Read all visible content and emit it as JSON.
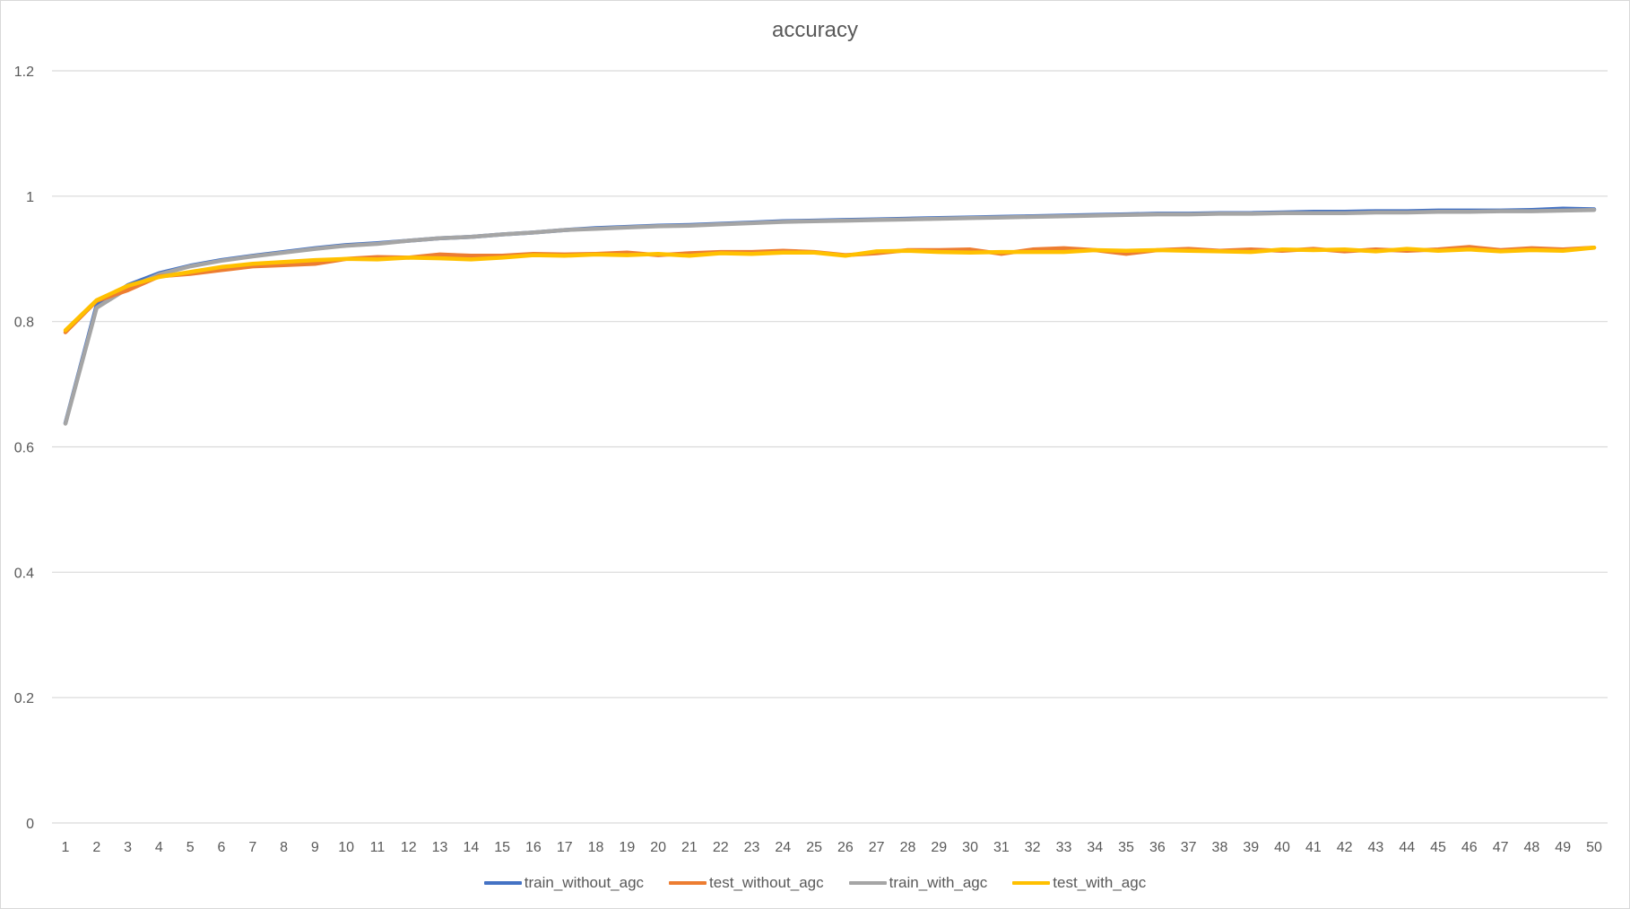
{
  "chart_data": {
    "type": "line",
    "title": "accuracy",
    "xlabel": "",
    "ylabel": "",
    "ylim": [
      0,
      1.2
    ],
    "y_ticks": [
      "0",
      "0.2",
      "0.4",
      "0.6",
      "0.8",
      "1",
      "1.2"
    ],
    "y_tick_values": [
      0,
      0.2,
      0.4,
      0.6,
      0.8,
      1.0,
      1.2
    ],
    "categories": [
      "1",
      "2",
      "3",
      "4",
      "5",
      "6",
      "7",
      "8",
      "9",
      "10",
      "11",
      "12",
      "13",
      "14",
      "15",
      "16",
      "17",
      "18",
      "19",
      "20",
      "21",
      "22",
      "23",
      "24",
      "25",
      "26",
      "27",
      "28",
      "29",
      "30",
      "31",
      "32",
      "33",
      "34",
      "35",
      "36",
      "37",
      "38",
      "39",
      "40",
      "41",
      "42",
      "43",
      "44",
      "45",
      "46",
      "47",
      "48",
      "49",
      "50"
    ],
    "grid": true,
    "legend_position": "bottom",
    "series": [
      {
        "name": "train_without_agc",
        "color": "#4472C4",
        "values": [
          0.638,
          0.826,
          0.858,
          0.877,
          0.889,
          0.898,
          0.905,
          0.911,
          0.917,
          0.922,
          0.925,
          0.929,
          0.933,
          0.935,
          0.939,
          0.942,
          0.946,
          0.949,
          0.951,
          0.953,
          0.954,
          0.956,
          0.958,
          0.96,
          0.961,
          0.962,
          0.963,
          0.964,
          0.965,
          0.966,
          0.967,
          0.968,
          0.969,
          0.97,
          0.971,
          0.972,
          0.972,
          0.973,
          0.973,
          0.974,
          0.975,
          0.975,
          0.976,
          0.976,
          0.977,
          0.977,
          0.977,
          0.978,
          0.98,
          0.979
        ]
      },
      {
        "name": "test_without_agc",
        "color": "#ED7D31",
        "values": [
          0.783,
          0.833,
          0.85,
          0.872,
          0.876,
          0.882,
          0.888,
          0.89,
          0.892,
          0.9,
          0.903,
          0.902,
          0.907,
          0.905,
          0.905,
          0.908,
          0.907,
          0.908,
          0.91,
          0.906,
          0.909,
          0.911,
          0.911,
          0.913,
          0.911,
          0.906,
          0.909,
          0.914,
          0.914,
          0.915,
          0.908,
          0.915,
          0.917,
          0.914,
          0.908,
          0.914,
          0.916,
          0.913,
          0.915,
          0.913,
          0.916,
          0.912,
          0.915,
          0.913,
          0.915,
          0.919,
          0.914,
          0.917,
          0.915,
          0.918
        ]
      },
      {
        "name": "train_with_agc",
        "color": "#A5A5A5",
        "values": [
          0.637,
          0.822,
          0.853,
          0.875,
          0.888,
          0.897,
          0.904,
          0.91,
          0.916,
          0.921,
          0.924,
          0.929,
          0.933,
          0.935,
          0.939,
          0.942,
          0.946,
          0.948,
          0.95,
          0.952,
          0.953,
          0.955,
          0.957,
          0.959,
          0.96,
          0.961,
          0.962,
          0.963,
          0.964,
          0.965,
          0.966,
          0.967,
          0.968,
          0.969,
          0.97,
          0.971,
          0.971,
          0.972,
          0.972,
          0.973,
          0.973,
          0.973,
          0.974,
          0.974,
          0.975,
          0.975,
          0.976,
          0.976,
          0.977,
          0.978
        ]
      },
      {
        "name": "test_with_agc",
        "color": "#FFC000",
        "values": [
          0.786,
          0.834,
          0.857,
          0.871,
          0.879,
          0.887,
          0.892,
          0.895,
          0.898,
          0.9,
          0.899,
          0.902,
          0.901,
          0.899,
          0.902,
          0.906,
          0.905,
          0.907,
          0.906,
          0.908,
          0.905,
          0.909,
          0.908,
          0.91,
          0.91,
          0.905,
          0.912,
          0.913,
          0.911,
          0.91,
          0.911,
          0.911,
          0.911,
          0.914,
          0.913,
          0.914,
          0.913,
          0.912,
          0.911,
          0.915,
          0.914,
          0.915,
          0.912,
          0.916,
          0.913,
          0.915,
          0.912,
          0.914,
          0.913,
          0.918
        ]
      }
    ]
  }
}
